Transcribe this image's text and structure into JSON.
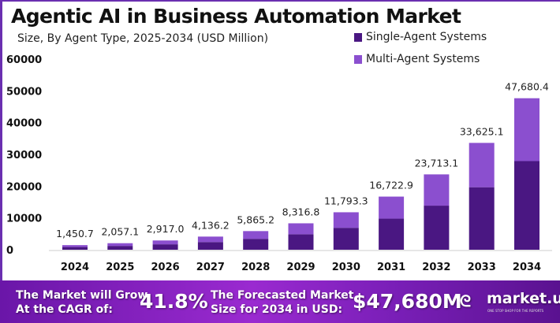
{
  "chart_data": {
    "type": "bar",
    "stacked": true,
    "title": "Agentic AI in Business Automation Market",
    "subtitle": "Size, By Agent Type, 2025-2034 (USD Million)",
    "categories": [
      "2024",
      "2025",
      "2026",
      "2027",
      "2028",
      "2029",
      "2030",
      "2031",
      "2032",
      "2033",
      "2034"
    ],
    "series": [
      {
        "name": "Single-Agent Systems",
        "color": "#4a1782",
        "values": [
          849,
          1203,
          1706,
          2420,
          3431,
          4865,
          6899,
          9783,
          13872,
          19671,
          27893
        ]
      },
      {
        "name": "Multi-Agent Systems",
        "color": "#8b4fcf",
        "values": [
          601.7,
          854.1,
          1211,
          1716.2,
          2434.2,
          3451.8,
          4894.3,
          6939.9,
          9841.1,
          13954.1,
          19787.4
        ]
      }
    ],
    "totals": [
      "1,450.7",
      "2,057.1",
      "2,917.0",
      "4,136.2",
      "5,865.2",
      "8,316.8",
      "11,793.3",
      "16,722.9",
      "23,713.1",
      "33,625.1",
      "47,680.4"
    ],
    "yticks": [
      "0",
      "10000",
      "20000",
      "30000",
      "40000",
      "50000",
      "60000"
    ],
    "ylim": [
      0,
      60000
    ],
    "grid": false,
    "legend": "top-right"
  },
  "footer": {
    "cagr_label_1": "The Market will Grow",
    "cagr_label_2": "At the CAGR of:",
    "cagr_value": "41.8%",
    "forecast_label_1": "The Forecasted Market",
    "forecast_label_2": "Size for 2034 in USD:",
    "forecast_value": "$47,680M",
    "brand": "market.us",
    "brand_tagline": "ONE STOP SHOP FOR THE REPORTS"
  }
}
